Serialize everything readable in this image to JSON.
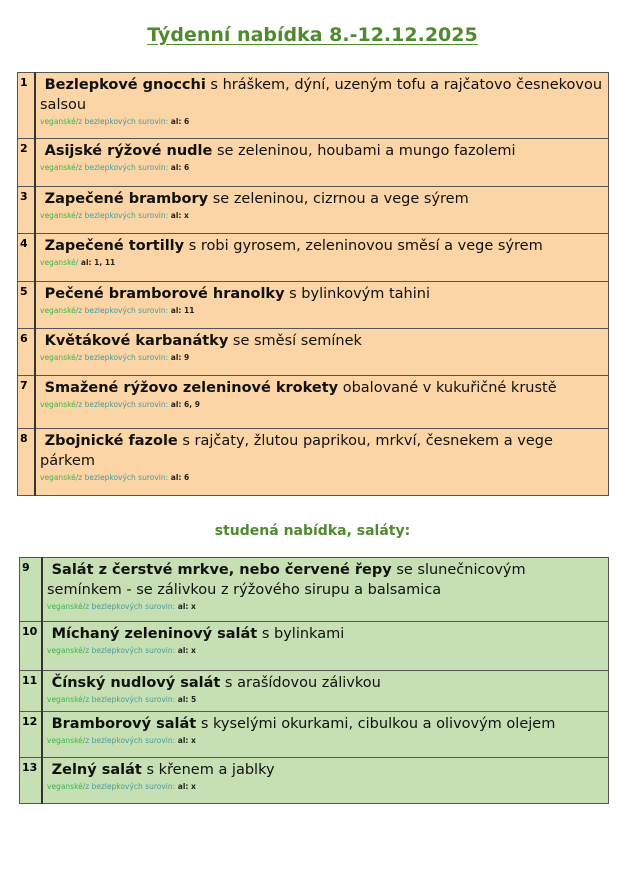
{
  "title": "Týdenní nabídka 8.-12.12.2025",
  "hot_menu": [
    {
      "num": "1",
      "name": "Bezlepkové gnocchi",
      "desc": " s hráškem, dýní, uzeným tofu a rajčatovo česnekovou salsou",
      "vegan": "veganské",
      "gf": "/z bezlepkových surovin:",
      "al": " al: 6",
      "h": 66
    },
    {
      "num": "2",
      "name": "Asijské rýžové nudle",
      "desc": " se zeleninou, houbami a  mungo fazolemi",
      "vegan": "veganské",
      "gf": "/z bezlepkových surovin:",
      "al": " al: 6",
      "h": 48
    },
    {
      "num": "3",
      "name": "Zapečené brambory",
      "desc": " se zeleninou, cizrnou a vege sýrem",
      "vegan": "veganské",
      "gf": "/z bezlepkových surovin:",
      "al": " al: x",
      "h": 47
    },
    {
      "num": "4",
      "name": "Zapečené tortilly",
      "desc": " s robi gyrosem, zeleninovou směsí a vege sýrem",
      "vegan": "veganské",
      "gf": "/",
      "al": " al: 1, 11",
      "h": 48
    },
    {
      "num": "5",
      "name": "Pečené bramborové hranolky",
      "desc": " s bylinkovým tahini",
      "vegan": "veganské",
      "gf": "/z bezlepkových surovin:",
      "al": " al: 11",
      "h": 47
    },
    {
      "num": "6",
      "name": "Květákové karbanátky",
      "desc": " se směsí semínek",
      "vegan": "veganské",
      "gf": "/z bezlepkových surovin:",
      "al": " al: 9",
      "h": 47
    },
    {
      "num": "7",
      "name": "Smažené rýžovo zeleninové krokety",
      "desc": " obalované v kukuřičné krustě",
      "vegan": "veganské",
      "gf": "/z bezlepkových surovin:",
      "al": " al: 6, 9",
      "h": 53
    },
    {
      "num": "8",
      "name": "Zbojnické fazole",
      "desc": " s rajčaty, žlutou paprikou, mrkví, česnekem a vege párkem",
      "vegan": "veganské",
      "gf": "/z bezlepkových surovin:",
      "al": " al: 6",
      "h": 67
    }
  ],
  "cold_heading": "studená nabídka, saláty:",
  "cold_menu": [
    {
      "num": "9",
      "name": "Salát z čerstvé mrkve, nebo červené řepy",
      "desc": " se slunečnicovým semínkem - se zálivkou z rýžového sirupu a balsamica",
      "vegan": "veganské",
      "gf": "/z bezlepkových surovin:",
      "al": " al: x",
      "h": 64
    },
    {
      "num": "10",
      "name": "Míchaný zeleninový salát",
      "desc": " s bylinkami",
      "vegan": "veganské",
      "gf": "/z bezlepkových surovin:",
      "al": " al: x",
      "h": 49
    },
    {
      "num": "11",
      "name": "Čínský nudlový salát",
      "desc": " s arašídovou zálivkou",
      "vegan": "veganské",
      "gf": "/z bezlepkových surovin:",
      "al": " al: 5",
      "h": 41
    },
    {
      "num": "12",
      "name": "Bramborový salát",
      "desc": " s kyselými okurkami, cibulkou a olivovým olejem",
      "vegan": "veganské",
      "gf": "/z bezlepkových surovin:",
      "al": " al: x",
      "h": 46
    },
    {
      "num": "13",
      "name": "Zelný salát",
      "desc": " s křenem a jablky",
      "vegan": "veganské",
      "gf": "/z bezlepkových surovin:",
      "al": " al: x",
      "h": 46
    }
  ]
}
